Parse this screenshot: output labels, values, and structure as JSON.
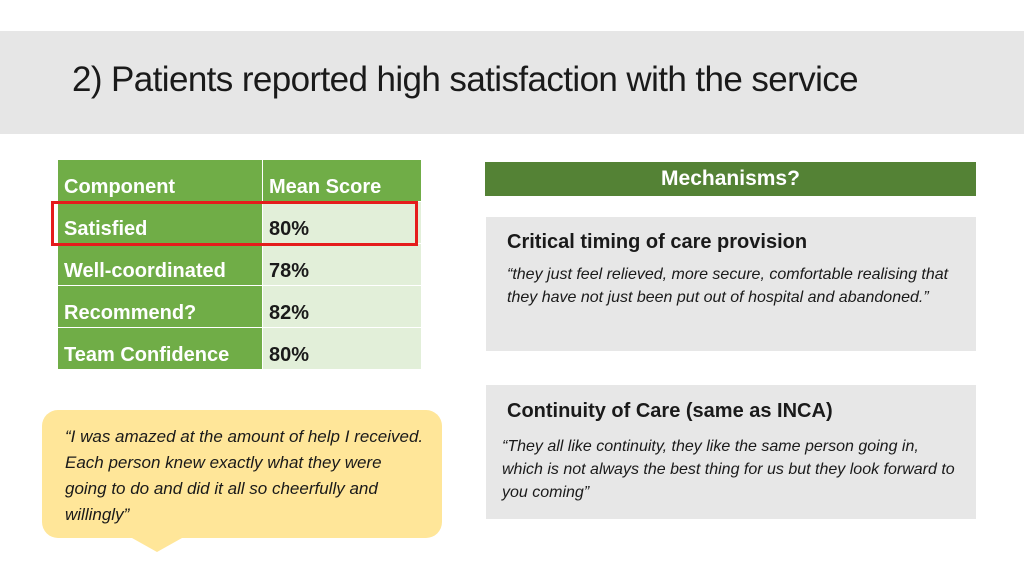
{
  "slide": {
    "title": "2) Patients reported high satisfaction with the service"
  },
  "table": {
    "headers": [
      "Component",
      "Mean Score"
    ],
    "rows": [
      {
        "component": "Satisfied",
        "score": "80%"
      },
      {
        "component": "Well-coordinated",
        "score": "78%"
      },
      {
        "component": "Recommend?",
        "score": "82%"
      },
      {
        "component": "Team Confidence",
        "score": "80%"
      }
    ],
    "highlight_color": "#e51c1c",
    "header_color": "#70ad47",
    "value_cell_color": "#e2efd9"
  },
  "quote_bubble": {
    "text": "“I was amazed at the amount of help I received. Each person knew exactly what they were going to do and did it all so cheerfully and willingly”",
    "color": "#ffe699"
  },
  "mechanisms": {
    "header": "Mechanisms?",
    "header_color": "#548235",
    "panels": [
      {
        "heading": "Critical timing of care provision",
        "quote": "“they just feel relieved, more secure, comfortable realising that they have not just been put out of hospital and abandoned.”"
      },
      {
        "heading": "Continuity of Care (same as INCA)",
        "quote": "“They all like continuity, they like the same person going in, which is not always the best thing for us but they look forward to you coming”"
      }
    ]
  }
}
